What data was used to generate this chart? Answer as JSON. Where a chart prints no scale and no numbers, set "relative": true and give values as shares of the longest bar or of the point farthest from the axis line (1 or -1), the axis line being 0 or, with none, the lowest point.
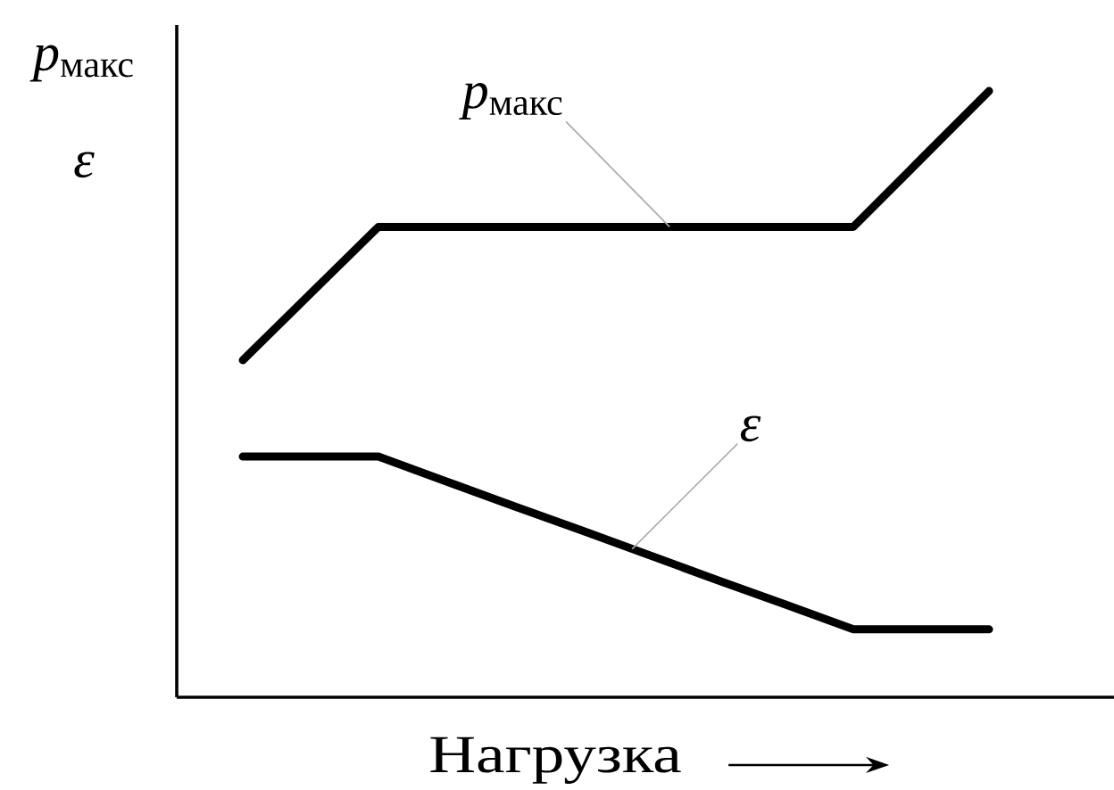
{
  "chart_data": {
    "type": "line",
    "relative": true,
    "xlabel": "Нагрузка",
    "ylabel": "*p*$_{макс}$ *ε*",
    "categories": [
      null,
      null,
      null,
      null,
      null,
      null,
      null,
      null,
      null,
      null,
      null,
      null
    ],
    "series": [
      {
        "name": "*p*$_{макс}$",
        "color": "#000000",
        "values": [
          0.556,
          0.666,
          0.776,
          0.776,
          0.776,
          0.776,
          0.776,
          0.776,
          0.776,
          0.776,
          0.888,
          1
        ]
      },
      {
        "name": "ε",
        "color": "#000000",
        "values": [
          0.397,
          0.397,
          0.397,
          0.356,
          0.315,
          0.275,
          0.234,
          0.193,
          0.153,
          0.112,
          0.112,
          0.112
        ]
      }
    ]
  }
}
